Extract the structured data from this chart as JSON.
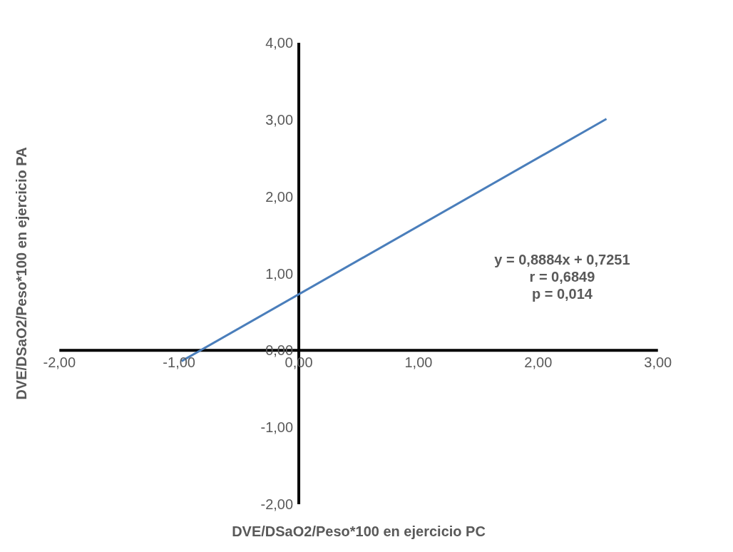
{
  "chart_data": {
    "type": "line",
    "xlabel": "DVE/DSaO2/Peso*100 en ejercicio PC",
    "ylabel": "DVE/DSaO2/Peso*100 en ejercicio PA",
    "series": [
      {
        "color": "#4a7ebb",
        "x": [
          -0.98,
          2.57
        ],
        "values": [
          -0.14,
          3.01
        ]
      }
    ],
    "xlim": [
      -2,
      3
    ],
    "xticks": [
      {
        "value": -2,
        "label": "-2,00"
      },
      {
        "value": -1,
        "label": "-1,00"
      },
      {
        "value": 0,
        "label": "0,00"
      },
      {
        "value": 1,
        "label": "1,00"
      },
      {
        "value": 2,
        "label": "2,00"
      },
      {
        "value": 3,
        "label": "3,00"
      }
    ],
    "ylim": [
      -2,
      4
    ],
    "yticks": [
      {
        "value": -2,
        "label": "-2,00"
      },
      {
        "value": -1,
        "label": "-1,00"
      },
      {
        "value": 0,
        "label": "0,00"
      },
      {
        "value": 1,
        "label": "1,00"
      },
      {
        "value": 2,
        "label": "2,00"
      },
      {
        "value": 3,
        "label": "3,00"
      },
      {
        "value": 4,
        "label": "4,00"
      }
    ],
    "annotations": [
      "y = 0,8884x + 0,7251",
      "r = 0,6849",
      "p = 0,014"
    ],
    "grid": false,
    "marker": "none",
    "line_style": "solid"
  }
}
